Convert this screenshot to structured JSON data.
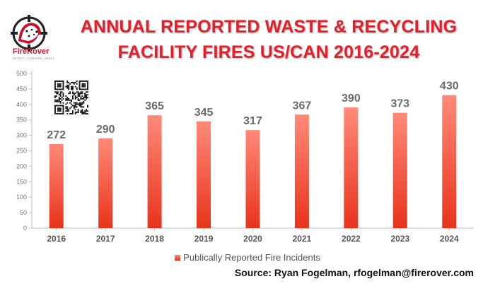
{
  "logo": {
    "name": "FireRover",
    "tagline": "DETECT | CONFIRM | REACT",
    "icon": "dalmatian-logo-icon"
  },
  "title": {
    "line1": "ANNUAL REPORTED WASTE & RECYCLING",
    "line2": "FACILITY FIRES US/CAN 2016-2024"
  },
  "qr_icon": "qr-code-icon",
  "source": "Source: Ryan Fogelman, rfogelman@firerover.com",
  "colors": {
    "title": "#e2202c",
    "bar_top": "#ff8a78",
    "bar_bottom": "#e8331c",
    "label": "#6b6b6b"
  },
  "chart_data": {
    "type": "bar",
    "categories": [
      "2016",
      "2017",
      "2018",
      "2019",
      "2020",
      "2021",
      "2022",
      "2023",
      "2024"
    ],
    "series": [
      {
        "name": "Publically Reported Fire Incidents",
        "values": [
          272,
          290,
          365,
          345,
          317,
          367,
          390,
          373,
          430
        ]
      }
    ],
    "ylim": [
      0,
      500
    ],
    "yticks": [
      0,
      50,
      100,
      150,
      200,
      250,
      300,
      350,
      400,
      450,
      500
    ],
    "grid": false,
    "legend": "bottom"
  }
}
